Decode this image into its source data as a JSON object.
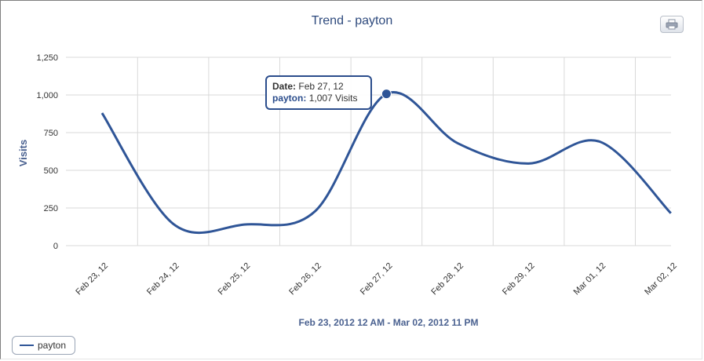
{
  "chart_data": {
    "type": "line",
    "title": "Trend - payton",
    "ylabel": "Visits",
    "xlabel": "Feb 23, 2012 12 AM - Mar 02, 2012 11 PM",
    "categories": [
      "Feb 23, 12",
      "Feb 24, 12",
      "Feb 25, 12",
      "Feb 26, 12",
      "Feb 27, 12",
      "Feb 28, 12",
      "Feb 29, 12",
      "Mar 01, 12",
      "Mar 02, 12"
    ],
    "y_ticks": [
      "0",
      "250",
      "500",
      "750",
      "1,000",
      "1,250"
    ],
    "ylim": [
      0,
      1250
    ],
    "grid": true,
    "legend_position": "bottom-left",
    "series": [
      {
        "name": "payton",
        "color": "#2f5597",
        "values": [
          880,
          145,
          140,
          230,
          1007,
          680,
          545,
          690,
          215
        ]
      }
    ],
    "tooltip": {
      "date_label": "Date:",
      "date_value": "Feb 27, 12",
      "series_label": "payton:",
      "series_value": "1,007 Visits",
      "point_index": 4
    }
  },
  "toolbar": {
    "print_icon": "printer-icon"
  },
  "legend": {
    "items": [
      {
        "label": "payton",
        "color": "#2f5597"
      }
    ]
  }
}
